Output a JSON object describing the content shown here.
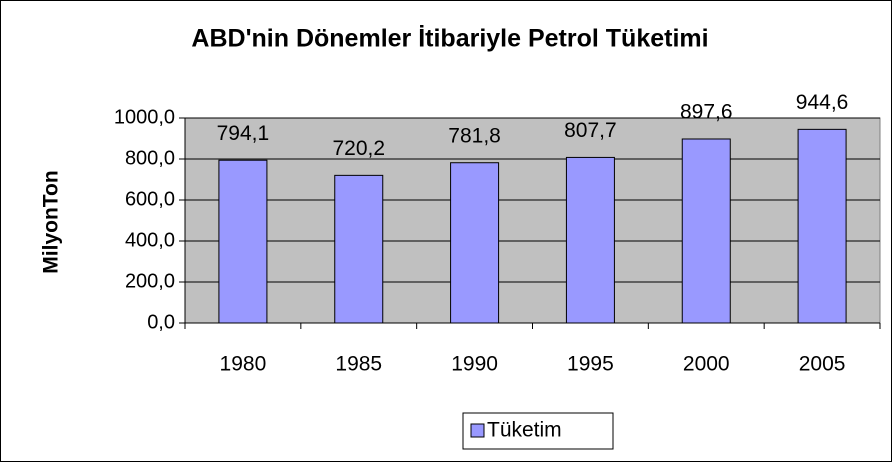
{
  "chart_data": {
    "type": "bar",
    "title": "ABD'nin Dönemler İtibariyle Petrol Tüketimi",
    "y_label": "MilyonTon",
    "categories": [
      "1980",
      "1985",
      "1990",
      "1995",
      "2000",
      "2005"
    ],
    "series": [
      {
        "name": "Tüketim",
        "color": "#9999ff",
        "values": [
          794.1,
          720.2,
          781.8,
          807.7,
          897.6,
          944.6
        ],
        "value_labels": [
          "794,1",
          "720,2",
          "781,8",
          "807,7",
          "897,6",
          "944,6"
        ]
      }
    ],
    "ylim": [
      0,
      1000
    ],
    "yticks": [
      {
        "value": 0,
        "label": "0,0"
      },
      {
        "value": 200,
        "label": "200,0"
      },
      {
        "value": 400,
        "label": "400,0"
      },
      {
        "value": 600,
        "label": "600,0"
      },
      {
        "value": 800,
        "label": "800,0"
      },
      {
        "value": 1000,
        "label": "1000,0"
      }
    ],
    "grid": true,
    "legend": "bottom",
    "plot_background": "#c0c0c0"
  }
}
